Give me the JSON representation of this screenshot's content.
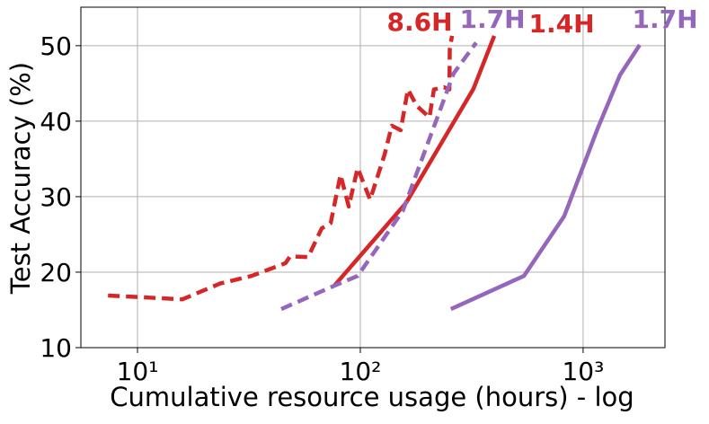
{
  "chart_data": {
    "type": "line",
    "xlabel": "Cumulative resource usage (hours) - log",
    "ylabel": "Test Accuracy (%)",
    "xscale": "log",
    "grid": true,
    "xlim": [
      5.57,
      2330
    ],
    "ylim": [
      10,
      55.1
    ],
    "xticks": [
      {
        "value": 10,
        "label": "10¹"
      },
      {
        "value": 100,
        "label": "10²"
      },
      {
        "value": 1000,
        "label": "10³"
      }
    ],
    "yticks": [
      10,
      20,
      30,
      40,
      50
    ],
    "series": [
      {
        "color": "#d62728",
        "dash": true,
        "x": [
          7.37,
          15.9,
          23.5,
          32.5,
          46.2,
          48.4,
          58.3,
          67.1,
          73.6,
          81.5,
          88.7,
          97.3,
          110.7,
          128.5,
          138.4,
          151.8,
          163.5,
          179.5,
          204.4,
          214,
          237,
          251,
          252,
          258
        ],
        "values": [
          16.9,
          16.4,
          18.5,
          19.5,
          21.2,
          22.1,
          22.0,
          25.8,
          26.5,
          32.9,
          28.7,
          33.8,
          29.6,
          35.6,
          39.4,
          38.8,
          44.2,
          42.0,
          40.5,
          44.2,
          44.5,
          44.2,
          49.5,
          51.3
        ]
      },
      {
        "color": "#d62728",
        "dash": false,
        "x": [
          76.4,
          160.7,
          322,
          399
        ],
        "values": [
          18.2,
          29.2,
          44.3,
          51.3
        ]
      },
      {
        "color": "#9467bd",
        "dash": true,
        "x": [
          44.2,
          76.4,
          97.3,
          155,
          262,
          331
        ],
        "values": [
          15.1,
          18.2,
          19.5,
          28.1,
          46.3,
          50.4
        ]
      },
      {
        "color": "#9467bd",
        "dash": false,
        "x": [
          255,
          542,
          822,
          1161,
          1463,
          1795
        ],
        "values": [
          15.1,
          19.5,
          27.4,
          39.0,
          46.1,
          50.1
        ]
      }
    ],
    "annotations": [
      {
        "text": "8.6H",
        "color": "#d62728"
      },
      {
        "text": "1.7H",
        "color": "#9467bd"
      },
      {
        "text": "1.4H",
        "color": "#d62728"
      },
      {
        "text": "1.7H",
        "color": "#9467bd"
      }
    ]
  }
}
